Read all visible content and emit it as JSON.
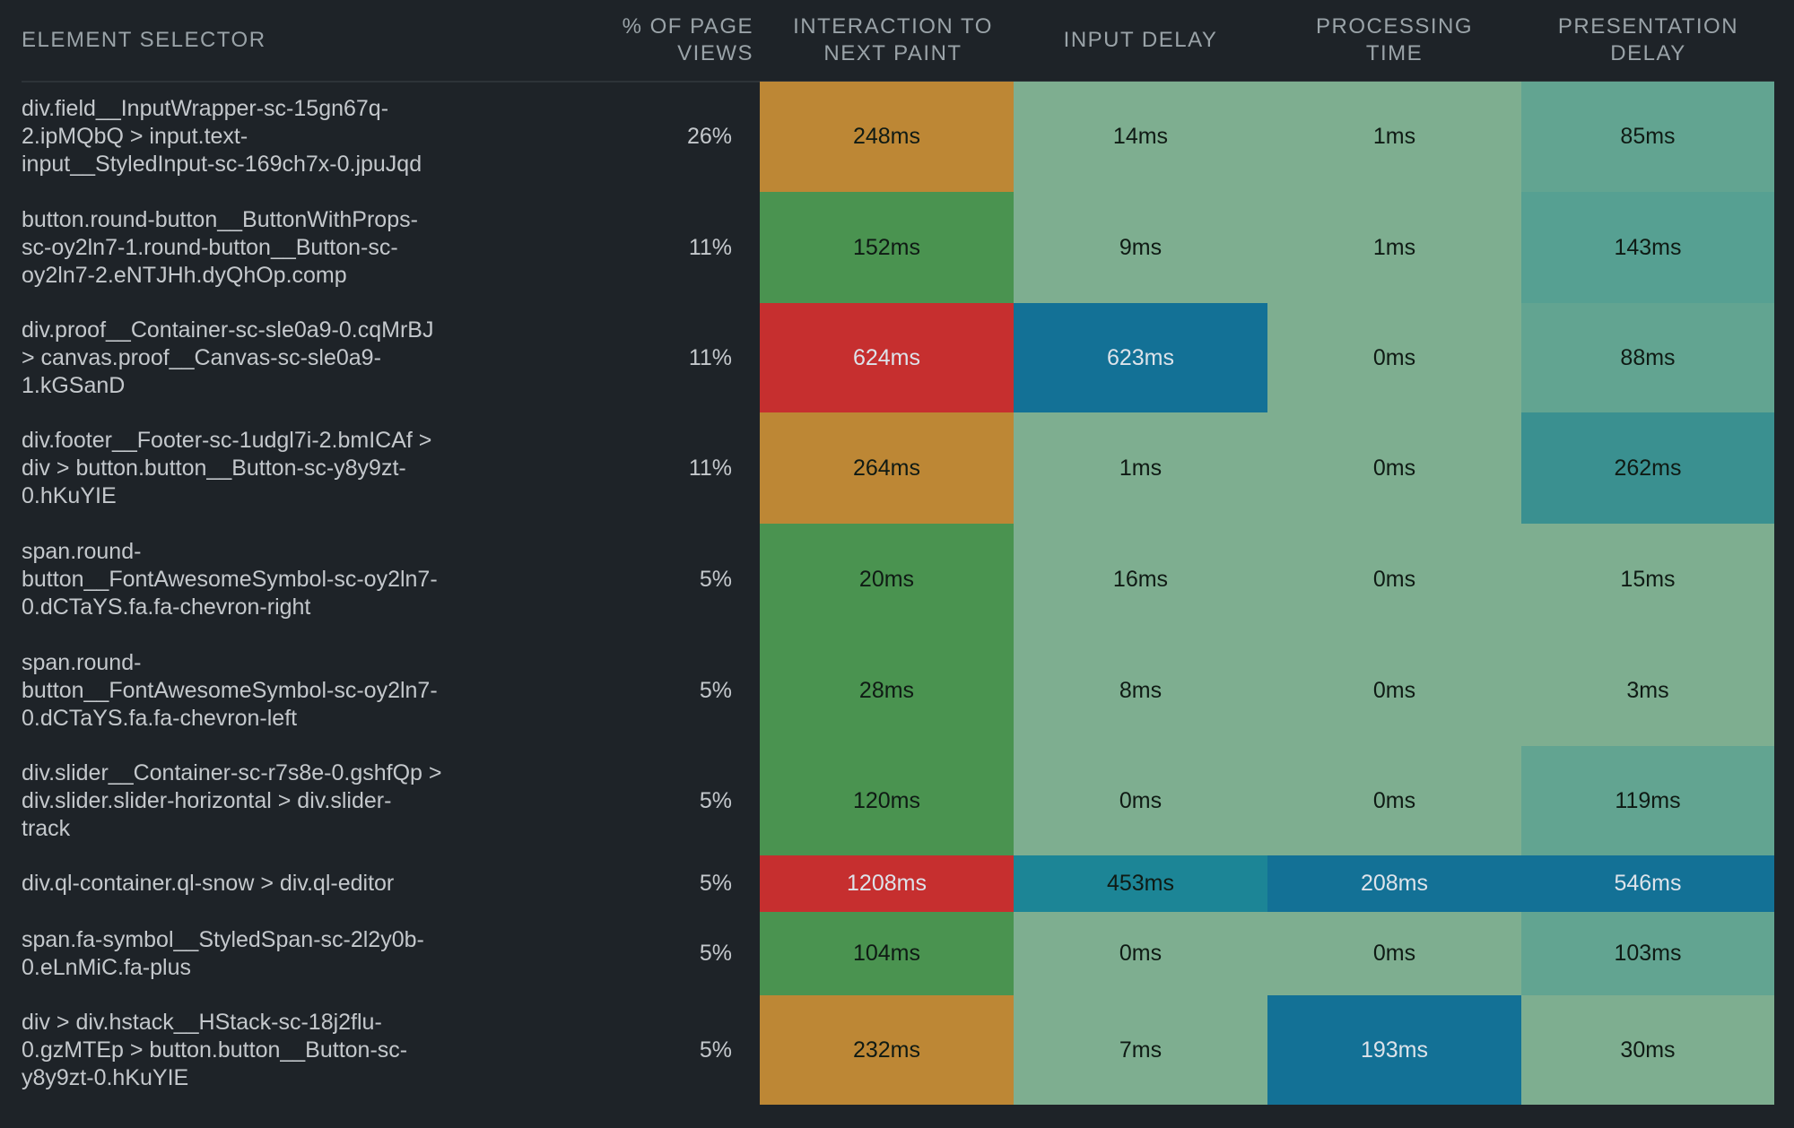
{
  "header": {
    "selector": [
      "ELEMENT SELECTOR"
    ],
    "pct": [
      "% OF PAGE",
      "VIEWS"
    ],
    "itnp": [
      "INTERACTION TO",
      "NEXT PAINT"
    ],
    "input_delay": [
      "INPUT DELAY"
    ],
    "processing": [
      "PROCESSING",
      "TIME"
    ],
    "presentation": [
      "PRESENTATION",
      "DELAY"
    ]
  },
  "palette": {
    "background": "#1e2328",
    "good": "#4a9350",
    "needs_improvement": "#bd8735",
    "poor": "#c62f2f",
    "scale_1": "#7eae90",
    "scale_2": "#62a491",
    "scale_3": "#56a092",
    "scale_4": "#3a9090",
    "scale_5": "#1c8596",
    "scale_6": "#137196"
  },
  "chart_data": {
    "type": "table",
    "title": "",
    "columns": [
      "Element Selector",
      "% of Page Views",
      "Interaction to Next Paint",
      "Input Delay",
      "Processing Time",
      "Presentation Delay"
    ],
    "rows": [
      {
        "selector": [
          "div.field__InputWrapper-sc-15gn67q-",
          "2.ipMQbQ > input.text-",
          "input__StyledInput-sc-169ch7x-0.jpuJqd"
        ],
        "pct": "26%",
        "values": [
          {
            "text": "248ms",
            "ms": 248,
            "color": "#bd8735",
            "tone": "dark"
          },
          {
            "text": "14ms",
            "ms": 14,
            "color": "#7eae90",
            "tone": "dark"
          },
          {
            "text": "1ms",
            "ms": 1,
            "color": "#7eae90",
            "tone": "dark"
          },
          {
            "text": "85ms",
            "ms": 85,
            "color": "#62a491",
            "tone": "dark"
          }
        ]
      },
      {
        "selector": [
          "button.round-button__ButtonWithProps-",
          "sc-oy2ln7-1.round-button__Button-sc-",
          "oy2ln7-2.eNTJHh.dyQhOp.comp"
        ],
        "pct": "11%",
        "values": [
          {
            "text": "152ms",
            "ms": 152,
            "color": "#4a9350",
            "tone": "dark"
          },
          {
            "text": "9ms",
            "ms": 9,
            "color": "#7eae90",
            "tone": "dark"
          },
          {
            "text": "1ms",
            "ms": 1,
            "color": "#7eae90",
            "tone": "dark"
          },
          {
            "text": "143ms",
            "ms": 143,
            "color": "#56a092",
            "tone": "dark"
          }
        ]
      },
      {
        "selector": [
          "div.proof__Container-sc-sle0a9-0.cqMrBJ",
          "> canvas.proof__Canvas-sc-sle0a9-",
          "1.kGSanD"
        ],
        "pct": "11%",
        "values": [
          {
            "text": "624ms",
            "ms": 624,
            "color": "#c62f2f",
            "tone": "light"
          },
          {
            "text": "623ms",
            "ms": 623,
            "color": "#137196",
            "tone": "light"
          },
          {
            "text": "0ms",
            "ms": 0,
            "color": "#7eae90",
            "tone": "dark"
          },
          {
            "text": "88ms",
            "ms": 88,
            "color": "#62a491",
            "tone": "dark"
          }
        ]
      },
      {
        "selector": [
          "div.footer__Footer-sc-1udgl7i-2.bmICAf >",
          "div > button.button__Button-sc-y8y9zt-",
          "0.hKuYIE"
        ],
        "pct": "11%",
        "values": [
          {
            "text": "264ms",
            "ms": 264,
            "color": "#bd8735",
            "tone": "dark"
          },
          {
            "text": "1ms",
            "ms": 1,
            "color": "#7eae90",
            "tone": "dark"
          },
          {
            "text": "0ms",
            "ms": 0,
            "color": "#7eae90",
            "tone": "dark"
          },
          {
            "text": "262ms",
            "ms": 262,
            "color": "#3a9090",
            "tone": "dark"
          }
        ]
      },
      {
        "selector": [
          "span.round-",
          "button__FontAwesomeSymbol-sc-oy2ln7-",
          "0.dCTaYS.fa.fa-chevron-right"
        ],
        "pct": "5%",
        "values": [
          {
            "text": "20ms",
            "ms": 20,
            "color": "#4a9350",
            "tone": "dark"
          },
          {
            "text": "16ms",
            "ms": 16,
            "color": "#7eae90",
            "tone": "dark"
          },
          {
            "text": "0ms",
            "ms": 0,
            "color": "#7eae90",
            "tone": "dark"
          },
          {
            "text": "15ms",
            "ms": 15,
            "color": "#7eae90",
            "tone": "dark"
          }
        ]
      },
      {
        "selector": [
          "span.round-",
          "button__FontAwesomeSymbol-sc-oy2ln7-",
          "0.dCTaYS.fa.fa-chevron-left"
        ],
        "pct": "5%",
        "values": [
          {
            "text": "28ms",
            "ms": 28,
            "color": "#4a9350",
            "tone": "dark"
          },
          {
            "text": "8ms",
            "ms": 8,
            "color": "#7eae90",
            "tone": "dark"
          },
          {
            "text": "0ms",
            "ms": 0,
            "color": "#7eae90",
            "tone": "dark"
          },
          {
            "text": "3ms",
            "ms": 3,
            "color": "#7eae90",
            "tone": "dark"
          }
        ]
      },
      {
        "selector": [
          "div.slider__Container-sc-r7s8e-0.gshfQp >",
          "div.slider.slider-horizontal > div.slider-",
          "track"
        ],
        "pct": "5%",
        "values": [
          {
            "text": "120ms",
            "ms": 120,
            "color": "#4a9350",
            "tone": "dark"
          },
          {
            "text": "0ms",
            "ms": 0,
            "color": "#7eae90",
            "tone": "dark"
          },
          {
            "text": "0ms",
            "ms": 0,
            "color": "#7eae90",
            "tone": "dark"
          },
          {
            "text": "119ms",
            "ms": 119,
            "color": "#62a491",
            "tone": "dark"
          }
        ]
      },
      {
        "selector": [
          "div.ql-container.ql-snow > div.ql-editor"
        ],
        "pct": "5%",
        "values": [
          {
            "text": "1208ms",
            "ms": 1208,
            "color": "#c62f2f",
            "tone": "light"
          },
          {
            "text": "453ms",
            "ms": 453,
            "color": "#1c8596",
            "tone": "dark"
          },
          {
            "text": "208ms",
            "ms": 208,
            "color": "#137196",
            "tone": "light"
          },
          {
            "text": "546ms",
            "ms": 546,
            "color": "#137196",
            "tone": "light"
          }
        ]
      },
      {
        "selector": [
          "span.fa-symbol__StyledSpan-sc-2l2y0b-",
          "0.eLnMiC.fa-plus"
        ],
        "pct": "5%",
        "values": [
          {
            "text": "104ms",
            "ms": 104,
            "color": "#4a9350",
            "tone": "dark"
          },
          {
            "text": "0ms",
            "ms": 0,
            "color": "#7eae90",
            "tone": "dark"
          },
          {
            "text": "0ms",
            "ms": 0,
            "color": "#7eae90",
            "tone": "dark"
          },
          {
            "text": "103ms",
            "ms": 103,
            "color": "#62a491",
            "tone": "dark"
          }
        ]
      },
      {
        "selector": [
          "div > div.hstack__HStack-sc-18j2flu-",
          "0.gzMTEp > button.button__Button-sc-",
          "y8y9zt-0.hKuYIE"
        ],
        "pct": "5%",
        "values": [
          {
            "text": "232ms",
            "ms": 232,
            "color": "#bd8735",
            "tone": "dark"
          },
          {
            "text": "7ms",
            "ms": 7,
            "color": "#7eae90",
            "tone": "dark"
          },
          {
            "text": "193ms",
            "ms": 193,
            "color": "#137196",
            "tone": "light"
          },
          {
            "text": "30ms",
            "ms": 30,
            "color": "#7eae90",
            "tone": "dark"
          }
        ]
      }
    ]
  }
}
